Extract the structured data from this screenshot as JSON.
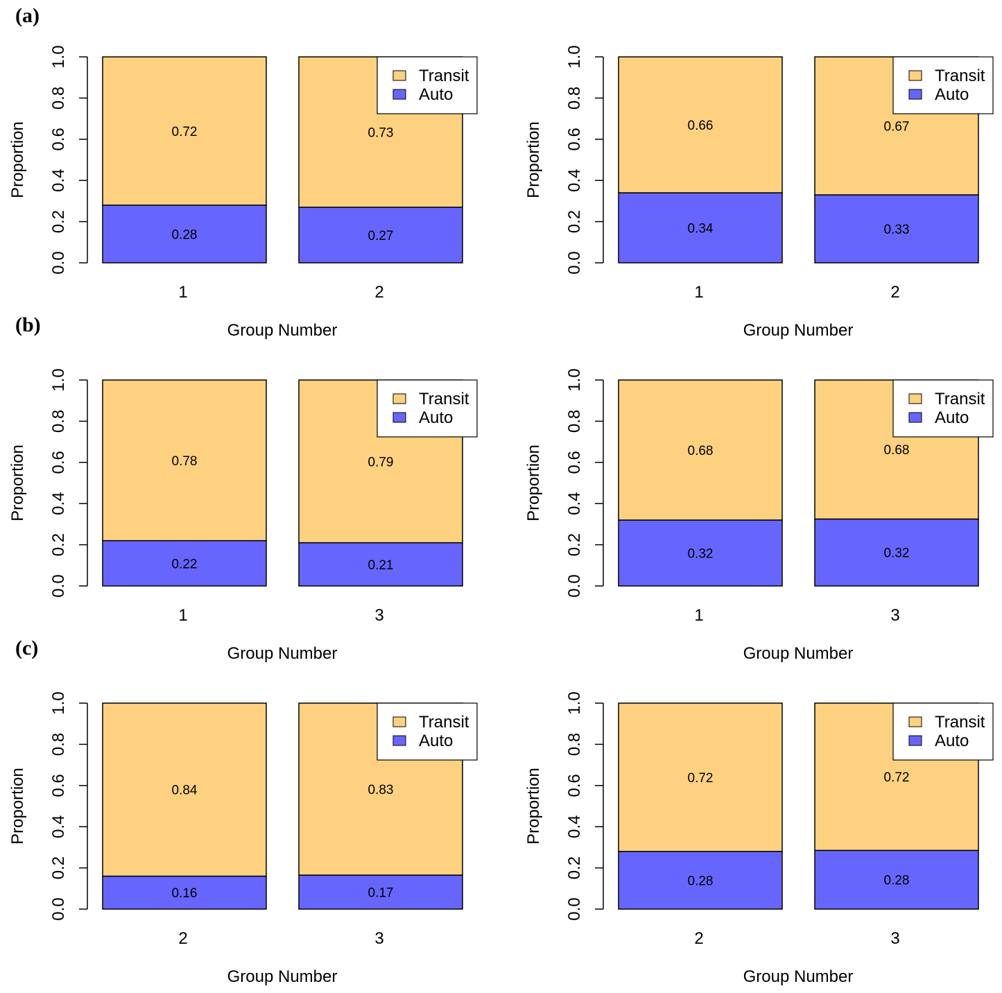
{
  "panel_labels": [
    "(a)",
    "(b)",
    "(c)"
  ],
  "colors": {
    "transit": "#FDD17F",
    "auto": "#6666FF",
    "outline": "#000000"
  },
  "chart_data": [
    {
      "type": "bar",
      "stacked": true,
      "panel": "(a)",
      "position": "left",
      "categories": [
        "1",
        "2"
      ],
      "series": [
        {
          "name": "Auto",
          "values": [
            0.28,
            0.27
          ],
          "labels": [
            "0.28",
            "0.27"
          ]
        },
        {
          "name": "Transit",
          "values": [
            0.72,
            0.73
          ],
          "labels": [
            "0.72",
            "0.73"
          ]
        }
      ],
      "xlabel": "Group Number",
      "ylabel": "Proportion",
      "ylim": [
        0,
        1
      ],
      "yticks": [
        "0.0",
        "0.2",
        "0.4",
        "0.6",
        "0.8",
        "1.0"
      ],
      "legend": [
        "Transit",
        "Auto"
      ],
      "legend_position": "top-right"
    },
    {
      "type": "bar",
      "stacked": true,
      "panel": "(a)",
      "position": "right",
      "categories": [
        "1",
        "2"
      ],
      "series": [
        {
          "name": "Auto",
          "values": [
            0.34,
            0.33
          ],
          "labels": [
            "0.34",
            "0.33"
          ]
        },
        {
          "name": "Transit",
          "values": [
            0.66,
            0.67
          ],
          "labels": [
            "0.66",
            "0.67"
          ]
        }
      ],
      "xlabel": "Group Number",
      "ylabel": "Proportion",
      "ylim": [
        0,
        1
      ],
      "yticks": [
        "0.0",
        "0.2",
        "0.4",
        "0.6",
        "0.8",
        "1.0"
      ],
      "legend": [
        "Transit",
        "Auto"
      ],
      "legend_position": "top-right"
    },
    {
      "type": "bar",
      "stacked": true,
      "panel": "(b)",
      "position": "left",
      "categories": [
        "1",
        "3"
      ],
      "series": [
        {
          "name": "Auto",
          "values": [
            0.22,
            0.21
          ],
          "labels": [
            "0.22",
            "0.21"
          ]
        },
        {
          "name": "Transit",
          "values": [
            0.78,
            0.79
          ],
          "labels": [
            "0.78",
            "0.79"
          ]
        }
      ],
      "xlabel": "Group Number",
      "ylabel": "Proportion",
      "ylim": [
        0,
        1
      ],
      "yticks": [
        "0.0",
        "0.2",
        "0.4",
        "0.6",
        "0.8",
        "1.0"
      ],
      "legend": [
        "Transit",
        "Auto"
      ],
      "legend_position": "top-right"
    },
    {
      "type": "bar",
      "stacked": true,
      "panel": "(b)",
      "position": "right",
      "categories": [
        "1",
        "3"
      ],
      "series": [
        {
          "name": "Auto",
          "values": [
            0.32,
            0.325
          ],
          "labels": [
            "0.32",
            "0.32"
          ]
        },
        {
          "name": "Transit",
          "values": [
            0.68,
            0.675
          ],
          "labels": [
            "0.68",
            "0.68"
          ]
        }
      ],
      "xlabel": "Group Number",
      "ylabel": "Proportion",
      "ylim": [
        0,
        1
      ],
      "yticks": [
        "0.0",
        "0.2",
        "0.4",
        "0.6",
        "0.8",
        "1.0"
      ],
      "legend": [
        "Transit",
        "Auto"
      ],
      "legend_position": "top-right"
    },
    {
      "type": "bar",
      "stacked": true,
      "panel": "(c)",
      "position": "left",
      "categories": [
        "2",
        "3"
      ],
      "series": [
        {
          "name": "Auto",
          "values": [
            0.16,
            0.165
          ],
          "labels": [
            "0.16",
            "0.17"
          ]
        },
        {
          "name": "Transit",
          "values": [
            0.84,
            0.835
          ],
          "labels": [
            "0.84",
            "0.83"
          ]
        }
      ],
      "xlabel": "Group Number",
      "ylabel": "Proportion",
      "ylim": [
        0,
        1
      ],
      "yticks": [
        "0.0",
        "0.2",
        "0.4",
        "0.6",
        "0.8",
        "1.0"
      ],
      "legend": [
        "Transit",
        "Auto"
      ],
      "legend_position": "top-right"
    },
    {
      "type": "bar",
      "stacked": true,
      "panel": "(c)",
      "position": "right",
      "categories": [
        "2",
        "3"
      ],
      "series": [
        {
          "name": "Auto",
          "values": [
            0.28,
            0.285
          ],
          "labels": [
            "0.28",
            "0.28"
          ]
        },
        {
          "name": "Transit",
          "values": [
            0.72,
            0.715
          ],
          "labels": [
            "0.72",
            "0.72"
          ]
        }
      ],
      "xlabel": "Group Number",
      "ylabel": "Proportion",
      "ylim": [
        0,
        1
      ],
      "yticks": [
        "0.0",
        "0.2",
        "0.4",
        "0.6",
        "0.8",
        "1.0"
      ],
      "legend": [
        "Transit",
        "Auto"
      ],
      "legend_position": "top-right"
    }
  ]
}
